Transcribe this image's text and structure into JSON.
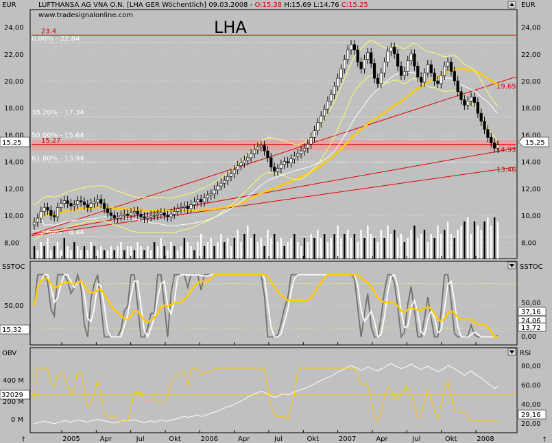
{
  "header": {
    "left_unit": "EUR",
    "right_unit": "EUR",
    "title": "LUFTHANSA AG VNA O.N. [LHA GER  Wöchentlich] 09.03.2008 -",
    "open": "O:15.38",
    "high": "H:15.69",
    "low": "L:14.76",
    "close": "C:15.25",
    "website": "www.tradesignalonline.com",
    "big_label": "LHA"
  },
  "chart_data": [
    {
      "type": "candlestick",
      "panel": "price",
      "yaxis": {
        "min": 6.8,
        "max": 25.3,
        "ticks": [
          "24,00",
          "22,00",
          "20,00",
          "18,00",
          "16,00",
          "14,00",
          "12,00",
          "10,00",
          "8,00"
        ],
        "tick_values": [
          24,
          22,
          20,
          18,
          16,
          14,
          12,
          10,
          8
        ]
      },
      "x_labels": [
        "2005",
        "Apr",
        "Jul",
        "Okt",
        "2006",
        "Apr",
        "Jul",
        "Okt",
        "2007",
        "Apr",
        "Jul",
        "Okt",
        "2008"
      ],
      "last_price_label": "15,25",
      "fib_levels": [
        {
          "label": "0.00% - 22.84",
          "value": 22.84
        },
        {
          "label": "38.20% - 17.34",
          "value": 17.34
        },
        {
          "label": "50.00% - 15.64",
          "value": 15.64
        },
        {
          "label": "61.80% - 13.94",
          "value": 13.94
        },
        {
          "label": "100.00% - 8.44",
          "value": 8.44
        }
      ],
      "red_levels": [
        {
          "label": "23.4",
          "value": 23.4
        },
        {
          "label": "15.27",
          "value": 15.27
        }
      ],
      "trendline_labels": [
        {
          "label": "19.65",
          "value": 19.65
        },
        {
          "label": "14.93",
          "value": 14.93
        },
        {
          "label": "13.46",
          "value": 13.46
        }
      ],
      "series_close": [
        9.5,
        9.8,
        10.3,
        10.6,
        10.4,
        10.0,
        9.9,
        10.6,
        10.9,
        11.1,
        10.9,
        10.7,
        10.8,
        11.1,
        11.0,
        10.8,
        10.6,
        10.9,
        11.0,
        11.2,
        10.9,
        10.5,
        10.2,
        10.0,
        9.8,
        9.9,
        10.0,
        10.1,
        10.0,
        10.2,
        10.3,
        10.1,
        9.9,
        9.8,
        9.9,
        10.0,
        10.0,
        10.1,
        10.2,
        10.0,
        9.9,
        10.1,
        10.3,
        10.5,
        10.6,
        10.7,
        10.5,
        10.8,
        11.0,
        11.2,
        11.0,
        11.3,
        11.5,
        11.6,
        11.9,
        12.2,
        12.4,
        12.6,
        12.9,
        13.1,
        13.4,
        13.7,
        13.9,
        14.1,
        14.3,
        14.6,
        14.9,
        15.1,
        15.2,
        14.8,
        14.3,
        13.6,
        13.3,
        13.5,
        13.8,
        14.0,
        13.9,
        14.2,
        14.4,
        14.6,
        14.8,
        15.0,
        15.3,
        15.8,
        16.3,
        16.9,
        17.4,
        17.9,
        18.5,
        19.0,
        19.6,
        20.2,
        20.9,
        21.6,
        22.3,
        22.7,
        22.3,
        21.4,
        20.9,
        21.6,
        22.1,
        21.3,
        20.2,
        19.8,
        20.6,
        21.4,
        22.2,
        22.5,
        22.0,
        21.1,
        20.4,
        20.7,
        21.5,
        22.0,
        21.1,
        20.3,
        19.9,
        20.6,
        21.2,
        20.6,
        20.0,
        19.8,
        20.4,
        21.1,
        21.4,
        20.7,
        20.0,
        19.2,
        18.6,
        18.2,
        18.5,
        18.8,
        18.4,
        17.6,
        17.0,
        16.4,
        15.8,
        15.4,
        15.0,
        15.25
      ],
      "moving_averages": [
        {
          "name": "ma_yellow_fast",
          "color": "#ffff66"
        },
        {
          "name": "ma_yellow_slow",
          "color": "#ffcc00"
        }
      ]
    },
    {
      "type": "bar",
      "panel": "volume",
      "values": [
        3,
        2,
        4,
        3,
        5,
        2,
        3,
        4,
        2,
        5,
        3,
        2,
        4,
        3,
        2,
        3,
        2,
        4,
        3,
        2,
        3,
        2,
        2,
        3,
        2,
        3,
        4,
        2,
        3,
        3,
        2,
        4,
        3,
        2,
        3,
        2,
        4,
        3,
        5,
        3,
        2,
        4,
        3,
        2,
        3,
        5,
        4,
        3,
        2,
        4,
        6,
        3,
        4,
        5,
        3,
        4,
        6,
        4,
        5,
        3,
        5,
        7,
        4,
        6,
        8,
        5,
        6,
        4,
        5,
        3,
        7,
        5,
        6,
        4,
        5,
        3,
        4,
        5,
        6,
        4,
        3,
        5,
        4,
        6,
        5,
        7,
        5,
        6,
        4,
        5,
        6,
        8,
        5,
        6,
        7,
        5,
        6,
        4,
        7,
        5,
        8,
        6,
        5,
        4,
        7,
        5,
        8,
        6,
        7,
        5,
        6,
        4,
        5,
        7,
        8,
        5,
        6,
        7,
        4,
        6,
        5,
        8,
        6,
        7,
        9,
        6,
        5,
        7,
        8,
        9,
        10,
        6,
        9,
        8,
        7,
        9,
        10,
        8,
        10,
        9
      ]
    },
    {
      "type": "line",
      "panel": "SSTOC",
      "title": "SSTOC",
      "yaxis_ticks": [
        "50,00"
      ],
      "right_ticks": [
        "50,00",
        "0,00"
      ],
      "left_value_label": "15,32",
      "right_value_labels": [
        "37,16",
        "24,06",
        "13,72"
      ],
      "series": [
        {
          "name": "stoch_k",
          "color": "#808080"
        },
        {
          "name": "stoch_d",
          "color": "#ffffff"
        },
        {
          "name": "stoch_slow",
          "color": "#ffcc00"
        }
      ]
    },
    {
      "type": "line",
      "panel": "OBV_RSI",
      "title_left": "OBV",
      "title_right": "RSI",
      "left_ticks": [
        "400 M",
        "200 M",
        "0 M"
      ],
      "right_ticks": [
        "80,00",
        "60,00",
        "40,00",
        "20,00"
      ],
      "left_value_label": "32029",
      "right_value_label": "29,16",
      "series": [
        {
          "name": "obv",
          "color": "#ffffff"
        },
        {
          "name": "rsi",
          "color": "#ffcc00"
        }
      ]
    }
  ]
}
